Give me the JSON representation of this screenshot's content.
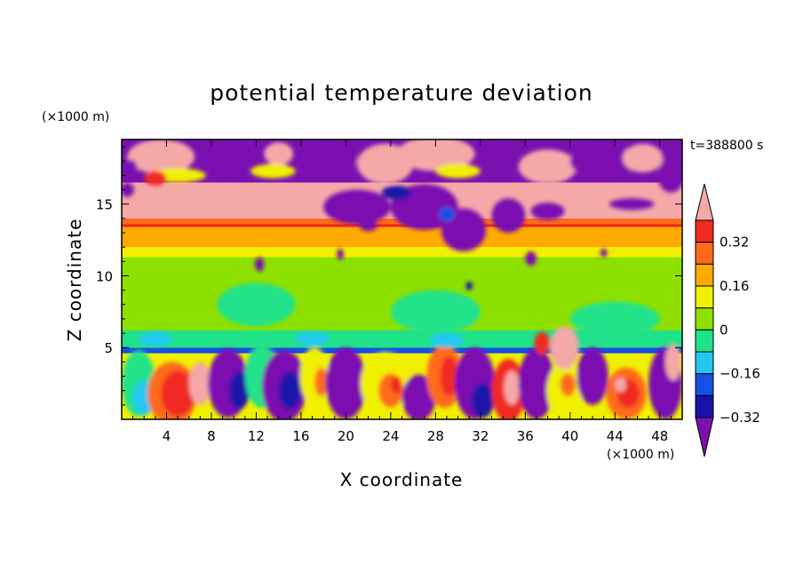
{
  "chart_data": {
    "type": "heatmap",
    "title": "potential temperature deviation",
    "xlabel": "X coordinate",
    "ylabel": "Z coordinate",
    "x_unit": "(×1000 m)",
    "y_unit": "(×1000 m)",
    "time_label": "t=388800 s",
    "xlim": [
      0,
      50
    ],
    "ylim": [
      0,
      19.5
    ],
    "x_ticks": [
      "4",
      "8",
      "12",
      "16",
      "20",
      "24",
      "28",
      "32",
      "36",
      "40",
      "44",
      "48"
    ],
    "y_ticks": [
      "5",
      "10",
      "15"
    ],
    "colorbar": {
      "levels": [
        -0.4,
        -0.32,
        -0.24,
        -0.16,
        -0.08,
        0,
        0.08,
        0.16,
        0.24,
        0.32,
        0.4
      ],
      "tick_labels": [
        "0.32",
        "0.16",
        "0",
        "−0.16",
        "−0.32"
      ],
      "colors": [
        "#7b10b0",
        "#1a12a8",
        "#1450e6",
        "#20c8f0",
        "#20e28a",
        "#8ee000",
        "#f0f000",
        "#ffaa00",
        "#ff6a1a",
        "#f02a20",
        "#f4a8a8"
      ],
      "extend": "both"
    },
    "regions": [
      {
        "band": "upper layer z 16-19.5 km",
        "value": "mixed strong positive (>0.4) and strong negative (<-0.4) patches"
      },
      {
        "band": "z 14-16 km",
        "value": ">0.4"
      },
      {
        "band": "z 13.5-14 km",
        "value": "0.24 to 0.4"
      },
      {
        "band": "z 12-13.5 km",
        "value": "0.08 to 0.24"
      },
      {
        "band": "z 5-11 km",
        "value": "-0.08 to 0.08"
      },
      {
        "band": "z 0-5 km",
        "value": "alternating cells from <-0.4 to >0.4"
      }
    ]
  }
}
